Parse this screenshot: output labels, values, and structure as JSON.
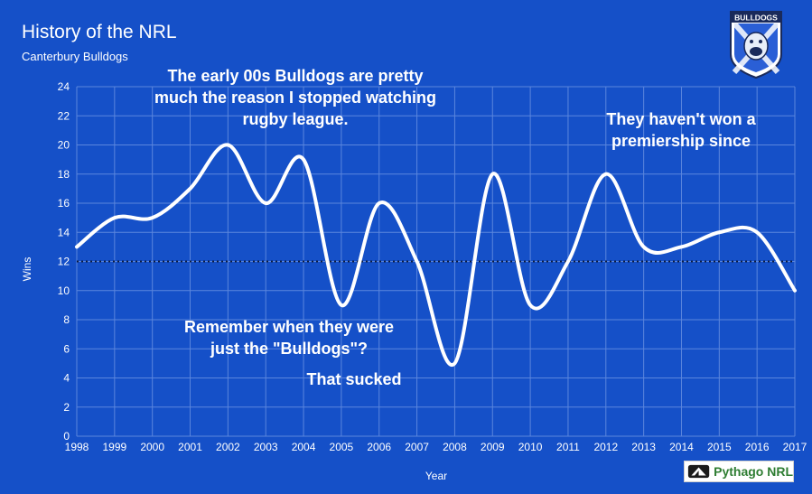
{
  "page": {
    "title": "History of the NRL",
    "subtitle": "Canterbury Bulldogs",
    "logo_text": "BULLDOGS",
    "brand": "Pythago NRL"
  },
  "colors": {
    "background": "#1550c8",
    "grid": "#5b86dd",
    "line": "#ffffff",
    "reference": "#0a1a40",
    "text": "#ffffff",
    "brand": "#2e7d32"
  },
  "chart_data": {
    "type": "line",
    "title": "History of the NRL",
    "subtitle": "Canterbury Bulldogs",
    "xlabel": "Year",
    "ylabel": "Wins",
    "ylim": [
      0,
      24
    ],
    "yticks": [
      0,
      2,
      4,
      6,
      8,
      10,
      12,
      14,
      16,
      18,
      20,
      22,
      24
    ],
    "grid": true,
    "categories": [
      "1998",
      "1999",
      "2000",
      "2001",
      "2002",
      "2003",
      "2004",
      "2005",
      "2006",
      "2007",
      "2008",
      "2009",
      "2010",
      "2011",
      "2012",
      "2013",
      "2014",
      "2015",
      "2016",
      "2017"
    ],
    "series": [
      {
        "name": "Wins",
        "values": [
          13,
          15,
          15,
          17,
          20,
          16,
          19,
          9,
          16,
          12,
          5,
          18,
          9,
          12,
          18,
          13,
          13,
          14,
          14,
          10
        ]
      }
    ],
    "reference_line": {
      "value": 12,
      "style": "dotted"
    },
    "annotations": [
      {
        "lines": [
          "The early 00s Bulldogs are pretty",
          "much the reason I stopped watching",
          "rugby league."
        ]
      },
      {
        "lines": [
          "They haven't won a",
          "premiership since"
        ]
      },
      {
        "lines": [
          "Remember when they were",
          "just the \"Bulldogs\"?"
        ]
      },
      {
        "lines": [
          "That sucked"
        ]
      }
    ]
  }
}
